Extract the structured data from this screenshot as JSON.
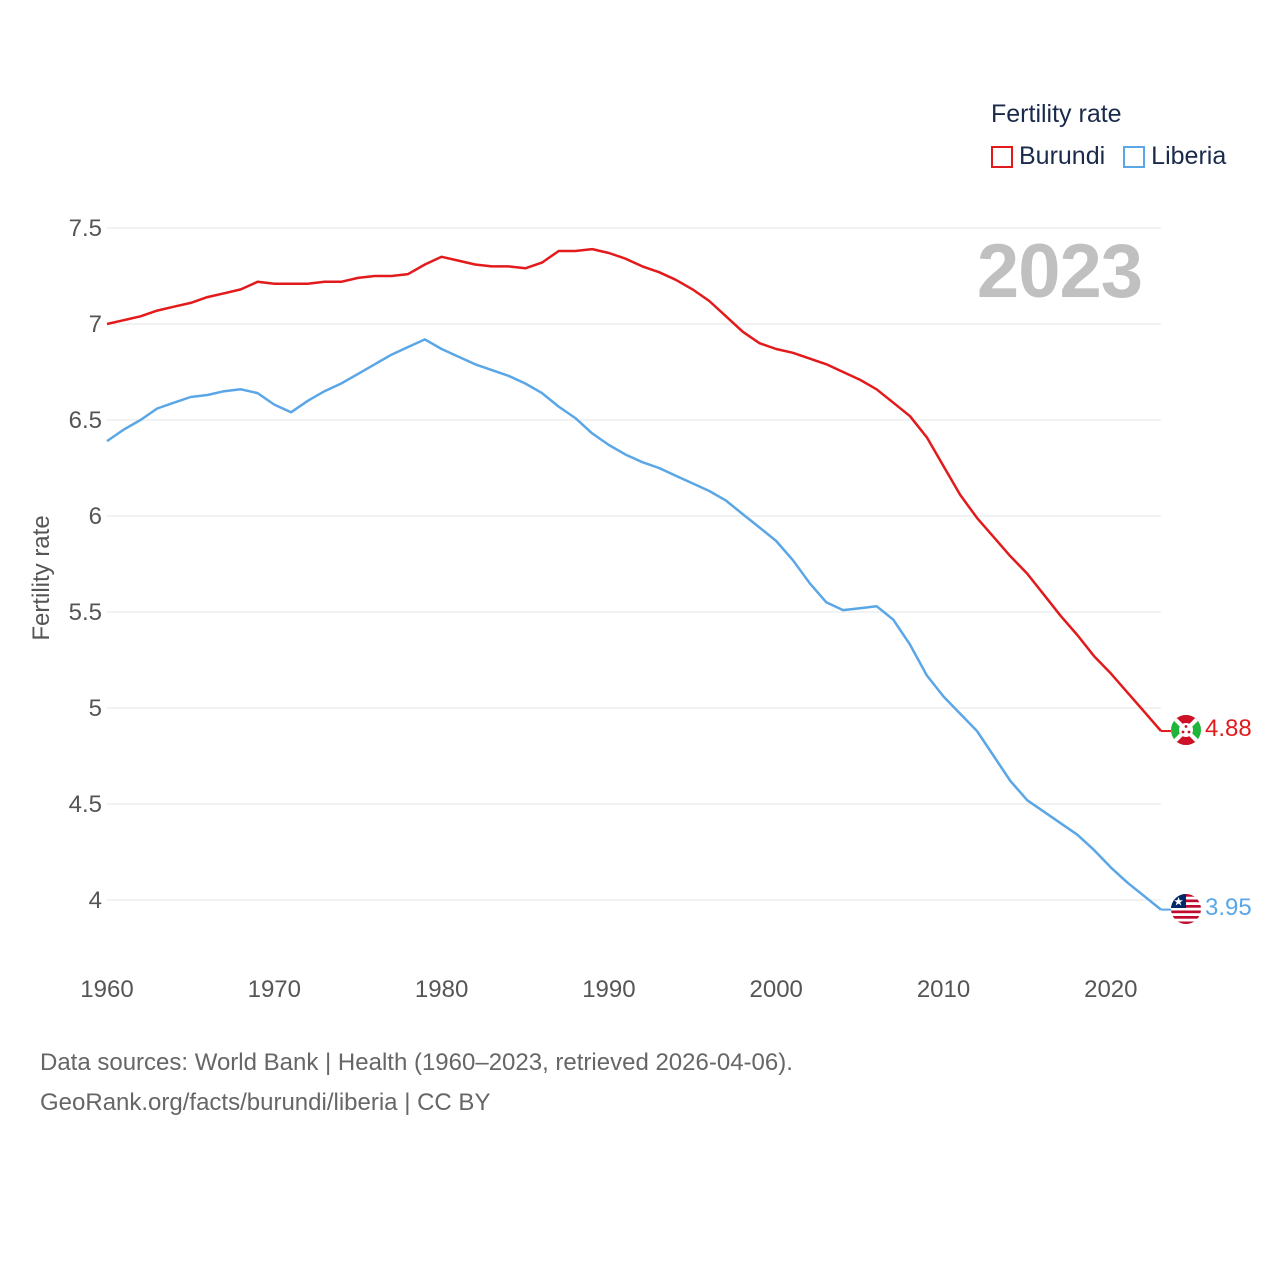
{
  "legend": {
    "title": "Fertility rate",
    "items": [
      {
        "label": "Burundi",
        "color": "#e31a1c"
      },
      {
        "label": "Liberia",
        "color": "#5aa6e6"
      }
    ]
  },
  "year_overlay": "2023",
  "source": {
    "line1": "Data sources: World Bank | Health (1960–2023, retrieved 2026-04-06).",
    "line2": "GeoRank.org/facts/burundi/liberia | CC BY"
  },
  "chart_data": {
    "type": "line",
    "title": "",
    "xlabel": "",
    "ylabel": "Fertility rate",
    "xlim": [
      1960,
      2023
    ],
    "ylim": [
      3.8,
      7.6
    ],
    "yticks": [
      4,
      4.5,
      5,
      5.5,
      6,
      6.5,
      7,
      7.5
    ],
    "ytick_labels": [
      "4",
      "4.5",
      "5",
      "5.5",
      "6",
      "6.5",
      "7",
      "7.5"
    ],
    "xticks": [
      1960,
      1970,
      1980,
      1990,
      2000,
      2010,
      2020
    ],
    "xtick_labels": [
      "1960",
      "1970",
      "1980",
      "1990",
      "2000",
      "2010",
      "2020"
    ],
    "x_start": 1960,
    "series": [
      {
        "name": "Burundi",
        "color": "#e31a1c",
        "end_label": "4.88",
        "flag": "burundi-flag-icon",
        "values": [
          7.0,
          7.02,
          7.04,
          7.07,
          7.09,
          7.11,
          7.14,
          7.16,
          7.18,
          7.22,
          7.21,
          7.21,
          7.21,
          7.22,
          7.22,
          7.24,
          7.25,
          7.25,
          7.26,
          7.31,
          7.35,
          7.33,
          7.31,
          7.3,
          7.3,
          7.29,
          7.32,
          7.38,
          7.38,
          7.39,
          7.37,
          7.34,
          7.3,
          7.27,
          7.23,
          7.18,
          7.12,
          7.04,
          6.96,
          6.9,
          6.87,
          6.85,
          6.82,
          6.79,
          6.75,
          6.71,
          6.66,
          6.59,
          6.52,
          6.41,
          6.26,
          6.11,
          5.99,
          5.89,
          5.79,
          5.7,
          5.59,
          5.48,
          5.38,
          5.27,
          5.18,
          5.08,
          4.98,
          4.88
        ]
      },
      {
        "name": "Liberia",
        "color": "#5aa6e6",
        "end_label": "3.95",
        "flag": "liberia-flag-icon",
        "values": [
          6.39,
          6.45,
          6.5,
          6.56,
          6.59,
          6.62,
          6.63,
          6.65,
          6.66,
          6.64,
          6.58,
          6.54,
          6.6,
          6.65,
          6.69,
          6.74,
          6.79,
          6.84,
          6.88,
          6.92,
          6.87,
          6.83,
          6.79,
          6.76,
          6.73,
          6.69,
          6.64,
          6.57,
          6.51,
          6.43,
          6.37,
          6.32,
          6.28,
          6.25,
          6.21,
          6.17,
          6.13,
          6.08,
          6.01,
          5.94,
          5.87,
          5.77,
          5.65,
          5.55,
          5.51,
          5.52,
          5.53,
          5.46,
          5.33,
          5.17,
          5.06,
          4.97,
          4.88,
          4.75,
          4.62,
          4.52,
          4.46,
          4.4,
          4.34,
          4.26,
          4.17,
          4.09,
          4.02,
          3.95
        ]
      }
    ]
  }
}
